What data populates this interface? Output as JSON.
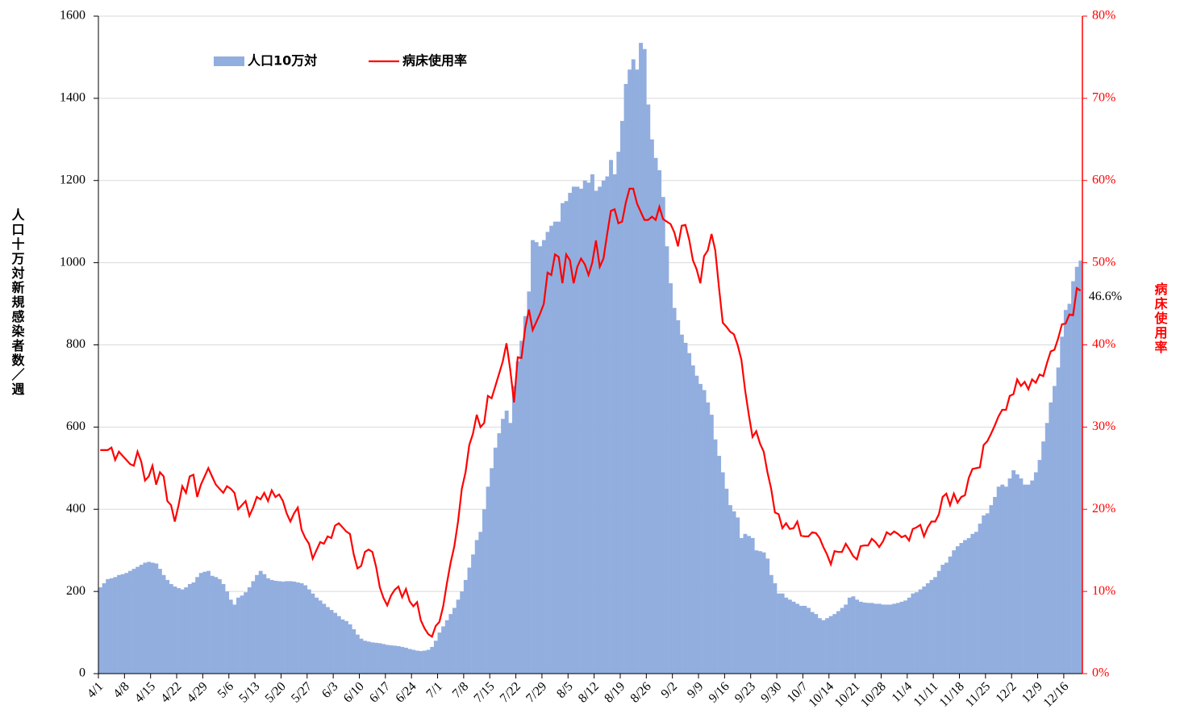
{
  "chart_data": {
    "type": "bar-line",
    "y_label": "人口十万対新規感染者数／週",
    "y2_label": "病床使用率",
    "annotation": "46.6%",
    "legend": "top-left",
    "grid": true,
    "ylim": [
      0,
      1600
    ],
    "yticks": [
      0,
      200,
      400,
      600,
      800,
      1000,
      1200,
      1400,
      1600
    ],
    "y2lim": [
      0,
      80
    ],
    "y2ticks": [
      {
        "value": 0,
        "label": "0%"
      },
      {
        "value": 10,
        "label": "10%"
      },
      {
        "value": 20,
        "label": "20%"
      },
      {
        "value": 30,
        "label": "30%"
      },
      {
        "value": 40,
        "label": "40%"
      },
      {
        "value": 50,
        "label": "50%"
      },
      {
        "value": 60,
        "label": "60%"
      },
      {
        "value": 70,
        "label": "70%"
      },
      {
        "value": 80,
        "label": "80%"
      }
    ],
    "categories": [
      "4/1",
      null,
      null,
      null,
      null,
      null,
      null,
      "4/8",
      null,
      null,
      null,
      null,
      null,
      null,
      "4/15",
      null,
      null,
      null,
      null,
      null,
      null,
      "4/22",
      null,
      null,
      null,
      null,
      null,
      null,
      "4/29",
      null,
      null,
      null,
      null,
      null,
      null,
      "5/6",
      null,
      null,
      null,
      null,
      null,
      null,
      "5/13",
      null,
      null,
      null,
      null,
      null,
      null,
      "5/20",
      null,
      null,
      null,
      null,
      null,
      null,
      "5/27",
      null,
      null,
      null,
      null,
      null,
      null,
      "6/3",
      null,
      null,
      null,
      null,
      null,
      null,
      "6/10",
      null,
      null,
      null,
      null,
      null,
      null,
      "6/17",
      null,
      null,
      null,
      null,
      null,
      null,
      "6/24",
      null,
      null,
      null,
      null,
      null,
      null,
      "7/1",
      null,
      null,
      null,
      null,
      null,
      null,
      "7/8",
      null,
      null,
      null,
      null,
      null,
      null,
      "7/15",
      null,
      null,
      null,
      null,
      null,
      null,
      "7/22",
      null,
      null,
      null,
      null,
      null,
      null,
      "7/29",
      null,
      null,
      null,
      null,
      null,
      null,
      "8/5",
      null,
      null,
      null,
      null,
      null,
      null,
      "8/12",
      null,
      null,
      null,
      null,
      null,
      null,
      "8/19",
      null,
      null,
      null,
      null,
      null,
      null,
      "8/26",
      null,
      null,
      null,
      null,
      null,
      null,
      "9/2",
      null,
      null,
      null,
      null,
      null,
      null,
      "9/9",
      null,
      null,
      null,
      null,
      null,
      null,
      "9/16",
      null,
      null,
      null,
      null,
      null,
      null,
      "9/23",
      null,
      null,
      null,
      null,
      null,
      null,
      "9/30",
      null,
      null,
      null,
      null,
      null,
      null,
      "10/7",
      null,
      null,
      null,
      null,
      null,
      null,
      "10/14",
      null,
      null,
      null,
      null,
      null,
      null,
      "10/21",
      null,
      null,
      null,
      null,
      null,
      null,
      "10/28",
      null,
      null,
      null,
      null,
      null,
      null,
      "11/4",
      null,
      null,
      null,
      null,
      null,
      null,
      "11/11",
      null,
      null,
      null,
      null,
      null,
      null,
      "11/18",
      null,
      null,
      null,
      null,
      null,
      null,
      "11/25",
      null,
      null,
      null,
      null,
      null,
      null,
      "12/2",
      null,
      null,
      null,
      null,
      null,
      null,
      "12/9",
      null,
      null,
      null,
      null,
      null,
      null,
      "12/16",
      null,
      null,
      null,
      null
    ],
    "series": [
      {
        "name": "人口10万対",
        "color": "#92aedf",
        "values": [
          210,
          220,
          230,
          232,
          235,
          240,
          242,
          245,
          250,
          255,
          260,
          265,
          270,
          272,
          270,
          268,
          255,
          240,
          228,
          218,
          212,
          208,
          205,
          210,
          218,
          222,
          235,
          245,
          248,
          250,
          238,
          235,
          230,
          218,
          200,
          180,
          168,
          185,
          190,
          198,
          210,
          225,
          240,
          250,
          242,
          232,
          228,
          226,
          225,
          224,
          225,
          225,
          224,
          222,
          220,
          215,
          205,
          195,
          185,
          178,
          170,
          162,
          155,
          148,
          140,
          132,
          128,
          120,
          108,
          95,
          85,
          80,
          78,
          76,
          75,
          74,
          72,
          70,
          69,
          68,
          67,
          65,
          63,
          60,
          58,
          56,
          55,
          56,
          58,
          65,
          80,
          100,
          115,
          130,
          145,
          160,
          180,
          200,
          228,
          258,
          290,
          325,
          345,
          400,
          455,
          500,
          550,
          585,
          620,
          640,
          610,
          700,
          760,
          810,
          870,
          930,
          1055,
          1050,
          1040,
          1055,
          1075,
          1090,
          1100,
          1100,
          1145,
          1150,
          1170,
          1185,
          1185,
          1180,
          1200,
          1195,
          1215,
          1175,
          1185,
          1200,
          1210,
          1250,
          1215,
          1270,
          1345,
          1435,
          1470,
          1495,
          1470,
          1535,
          1520,
          1385,
          1300,
          1255,
          1225,
          1160,
          1040,
          950,
          890,
          860,
          825,
          805,
          780,
          750,
          725,
          705,
          690,
          660,
          630,
          570,
          530,
          490,
          450,
          410,
          395,
          380,
          330,
          340,
          335,
          330,
          300,
          298,
          295,
          280,
          240,
          220,
          195,
          195,
          185,
          180,
          175,
          170,
          165,
          165,
          160,
          150,
          145,
          135,
          130,
          135,
          140,
          145,
          152,
          160,
          168,
          185,
          188,
          180,
          175,
          173,
          172,
          172,
          170,
          170,
          168,
          168,
          168,
          170,
          172,
          175,
          178,
          185,
          195,
          198,
          205,
          212,
          220,
          228,
          235,
          250,
          265,
          270,
          285,
          300,
          310,
          318,
          325,
          330,
          340,
          345,
          365,
          385,
          390,
          410,
          430,
          455,
          460,
          455,
          475,
          495,
          485,
          475,
          460,
          460,
          470,
          490,
          520,
          565,
          610,
          660,
          700,
          745,
          820,
          885,
          900,
          955,
          990,
          1005
        ]
      },
      {
        "name": "病床使用率",
        "color": "#ff0000",
        "axis": "y2",
        "values": [
          27.2,
          27.2,
          27.2,
          27.5,
          26,
          27,
          26.5,
          26,
          25.5,
          25.3,
          27,
          25.8,
          23.5,
          24,
          25.3,
          23,
          24.5,
          24,
          21,
          20.5,
          18.5,
          20.5,
          22.8,
          22,
          24,
          24.2,
          21.5,
          23,
          24,
          25,
          24,
          23,
          22.5,
          22,
          22.8,
          22.5,
          22,
          20,
          20.5,
          21,
          19.2,
          20.2,
          21.5,
          21.2,
          22,
          21,
          22.3,
          21.5,
          21.8,
          21,
          19.5,
          18.5,
          19.5,
          20.2,
          17.5,
          16.5,
          15.8,
          14,
          15,
          16,
          15.8,
          16.7,
          16.5,
          18,
          18.3,
          17.8,
          17.3,
          17,
          14.5,
          12.8,
          13.1,
          14.8,
          15.1,
          14.8,
          13,
          10.5,
          9.2,
          8.3,
          9.5,
          10.2,
          10.6,
          9.3,
          10.3,
          8.8,
          8.2,
          8.7,
          6.5,
          5.5,
          4.8,
          4.5,
          5.8,
          6.3,
          8.2,
          11,
          13.5,
          15.5,
          18.5,
          22.5,
          24.5,
          27.8,
          29.2,
          31.5,
          30,
          30.5,
          33.8,
          33.5,
          35,
          36.5,
          38,
          40.2,
          37,
          33,
          38.5,
          38.4,
          42,
          44.3,
          41.8,
          42.8,
          43.8,
          45,
          48.8,
          48.5,
          51,
          50.7,
          47.5,
          51,
          50.3,
          47.5,
          49.5,
          50.5,
          49.8,
          48.5,
          50,
          52.7,
          49.5,
          50.5,
          53.5,
          56.3,
          56.5,
          54.8,
          55,
          57.3,
          59,
          59,
          57.2,
          56.2,
          55.2,
          55.2,
          55.6,
          55.2,
          56.8,
          55.3,
          55,
          54.7,
          53.7,
          52,
          54.5,
          54.6,
          52.8,
          50.3,
          49.2,
          47.5,
          50.8,
          51.5,
          53.5,
          51.5,
          47,
          42.7,
          42.2,
          41.6,
          41.3,
          40,
          38.2,
          34.5,
          31.5,
          28.8,
          29.5,
          28,
          27,
          24.5,
          22.5,
          19.6,
          19.4,
          17.7,
          18.3,
          17.6,
          17.7,
          18.5,
          16.8,
          16.7,
          16.7,
          17.2,
          17.1,
          16.5,
          15.4,
          14.5,
          13.3,
          14.9,
          14.8,
          14.8,
          15.8,
          15.1,
          14.3,
          13.9,
          15.5,
          15.6,
          15.6,
          16.4,
          16,
          15.4,
          16.1,
          17.2,
          16.9,
          17.3,
          17,
          16.6,
          16.8,
          16.2,
          17.6,
          17.8,
          18.1,
          16.7,
          17.8,
          18.5,
          18.5,
          19.4,
          21.5,
          21.9,
          20.5,
          21.9,
          20.8,
          21.5,
          21.7,
          23.8,
          24.9,
          25,
          25.1,
          27.8,
          28.3,
          29.2,
          30.2,
          31.3,
          32.1,
          32.1,
          33.8,
          34,
          35.8,
          35,
          35.5,
          34.6,
          35.8,
          35.4,
          36.4,
          36.2,
          37.8,
          39.2,
          39.4,
          40.8,
          42.5,
          42.6,
          43.7,
          43.6,
          46.9,
          46.6
        ]
      }
    ]
  }
}
